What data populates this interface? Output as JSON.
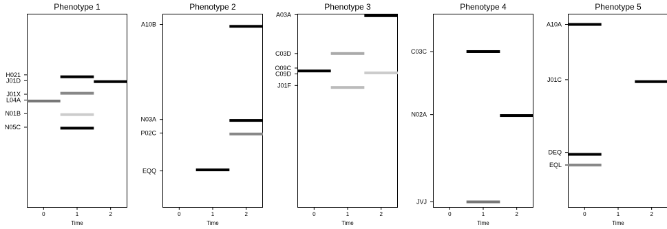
{
  "chart_data": [
    {
      "type": "bar",
      "title": "Phenotype 1",
      "xlabel": "Time",
      "xticks": [
        "0",
        "1",
        "2"
      ],
      "xlim": [
        -0.5,
        2.5
      ],
      "yrange": [
        0,
        100
      ],
      "labels": [
        {
          "text": "H021",
          "y": 68.5
        },
        {
          "text": "J01D",
          "y": 65.5
        },
        {
          "text": "J01X",
          "y": 58.5
        },
        {
          "text": "L04A",
          "y": 55.5
        },
        {
          "text": "N01B",
          "y": 48.5
        },
        {
          "text": "N05C",
          "y": 41.5
        }
      ],
      "bars": [
        {
          "label": "H021",
          "time": 1,
          "y": 67.5,
          "color": "#000000"
        },
        {
          "label": "J01D",
          "time": 2,
          "y": 65.0,
          "color": "#000000"
        },
        {
          "label": "J01X",
          "time": 1,
          "y": 59.0,
          "color": "#888888"
        },
        {
          "label": "L04A",
          "time": 0,
          "y": 55.0,
          "color": "#777777"
        },
        {
          "label": "N01B",
          "time": 1,
          "y": 48.0,
          "color": "#cccccc"
        },
        {
          "label": "N05C",
          "time": 1,
          "y": 41.0,
          "color": "#000000"
        }
      ]
    },
    {
      "type": "bar",
      "title": "Phenotype 2",
      "xlabel": "Time",
      "xticks": [
        "0",
        "1",
        "2"
      ],
      "xlim": [
        -0.5,
        2.5
      ],
      "yrange": [
        0,
        100
      ],
      "labels": [
        {
          "text": "A10B",
          "y": 94.5
        },
        {
          "text": "N03A",
          "y": 45.5
        },
        {
          "text": "P02C",
          "y": 38.5
        },
        {
          "text": "EQQ",
          "y": 19.0
        }
      ],
      "bars": [
        {
          "label": "A10B",
          "time": 2,
          "y": 93.5,
          "color": "#000000"
        },
        {
          "label": "N03A",
          "time": 2,
          "y": 45.0,
          "color": "#000000"
        },
        {
          "label": "P02C",
          "time": 2,
          "y": 38.0,
          "color": "#888888"
        },
        {
          "label": "EQQ",
          "time": 1,
          "y": 19.5,
          "color": "#000000"
        }
      ]
    },
    {
      "type": "bar",
      "title": "Phenotype 3",
      "xlabel": "Time",
      "xticks": [
        "0",
        "1",
        "2"
      ],
      "xlim": [
        -0.5,
        2.5
      ],
      "yrange": [
        0,
        100
      ],
      "labels": [
        {
          "text": "A03A",
          "y": 99.5
        },
        {
          "text": "C03D",
          "y": 79.5
        },
        {
          "text": "O09C",
          "y": 72.0
        },
        {
          "text": "C09D",
          "y": 69.0
        },
        {
          "text": "J01F",
          "y": 63.0
        }
      ],
      "bars": [
        {
          "label": "A03A",
          "time": 2,
          "y": 99.0,
          "color": "#000000"
        },
        {
          "label": "C03D",
          "time": 1,
          "y": 79.5,
          "color": "#aaaaaa"
        },
        {
          "label": "O09C",
          "time": 0,
          "y": 70.5,
          "color": "#000000"
        },
        {
          "label": "C09D",
          "time": 2,
          "y": 69.5,
          "color": "#cccccc"
        },
        {
          "label": "J01F",
          "time": 1,
          "y": 62.0,
          "color": "#bbbbbb"
        }
      ]
    },
    {
      "type": "bar",
      "title": "Phenotype 4",
      "xlabel": "Time",
      "xticks": [
        "0",
        "1",
        "2"
      ],
      "xlim": [
        -0.5,
        2.5
      ],
      "yrange": [
        0,
        100
      ],
      "labels": [
        {
          "text": "C03C",
          "y": 80.5
        },
        {
          "text": "N02A",
          "y": 48.0
        },
        {
          "text": "JVJ",
          "y": 3.0
        }
      ],
      "bars": [
        {
          "label": "C03C",
          "time": 1,
          "y": 80.5,
          "color": "#000000"
        },
        {
          "label": "N02A",
          "time": 2,
          "y": 47.5,
          "color": "#000000"
        },
        {
          "label": "JVJ",
          "time": 1,
          "y": 3.0,
          "color": "#777777"
        }
      ]
    },
    {
      "type": "bar",
      "title": "Phenotype 5",
      "xlabel": "Time",
      "xticks": [
        "0",
        "1",
        "2"
      ],
      "xlim": [
        -0.5,
        2.5
      ],
      "yrange": [
        0,
        100
      ],
      "labels": [
        {
          "text": "A10A",
          "y": 94.5
        },
        {
          "text": "J01C",
          "y": 66.0
        },
        {
          "text": "DEQ",
          "y": 28.5
        },
        {
          "text": "EQL",
          "y": 22.0
        }
      ],
      "bars": [
        {
          "label": "A10A",
          "time": 0,
          "y": 94.5,
          "color": "#000000"
        },
        {
          "label": "J01C",
          "time": 2,
          "y": 65.0,
          "color": "#000000"
        },
        {
          "label": "DEQ",
          "time": 0,
          "y": 27.5,
          "color": "#000000"
        },
        {
          "label": "EQL",
          "time": 0,
          "y": 22.0,
          "color": "#888888"
        }
      ]
    }
  ]
}
